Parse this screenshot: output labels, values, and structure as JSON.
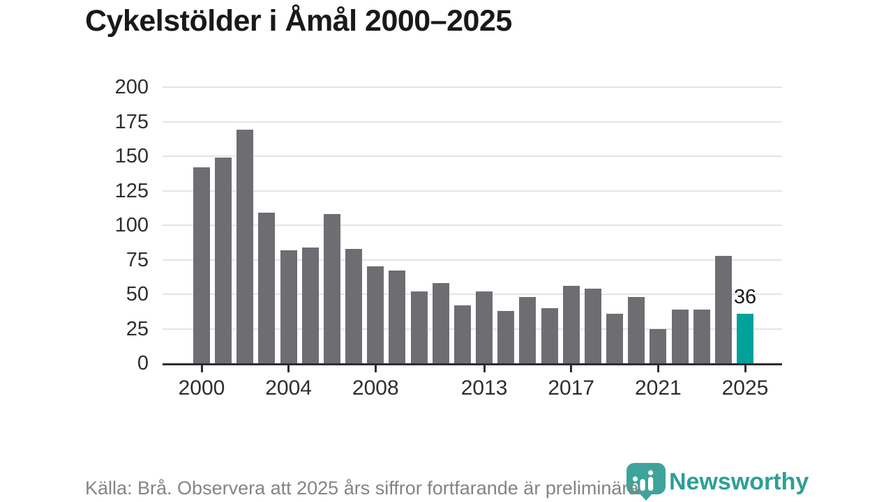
{
  "title": "Cykelstölder i Åmål 2000–2025",
  "chart_data": {
    "type": "bar",
    "title": "Cykelstölder i Åmål 2000–2025",
    "x": [
      2000,
      2001,
      2002,
      2003,
      2004,
      2005,
      2006,
      2007,
      2008,
      2009,
      2010,
      2011,
      2012,
      2013,
      2014,
      2015,
      2016,
      2017,
      2018,
      2019,
      2020,
      2021,
      2022,
      2023,
      2024,
      2025
    ],
    "values": [
      142,
      149,
      169,
      109,
      82,
      84,
      108,
      83,
      70,
      67,
      52,
      58,
      42,
      52,
      38,
      48,
      40,
      56,
      54,
      36,
      48,
      25,
      39,
      39,
      78,
      36
    ],
    "xlabel": "",
    "ylabel": "",
    "ylim": [
      0,
      200
    ],
    "yticks": [
      0,
      25,
      50,
      75,
      100,
      125,
      150,
      175,
      200
    ],
    "xticks": [
      2000,
      2004,
      2008,
      2013,
      2017,
      2021,
      2025
    ],
    "grid": true,
    "legend": "none",
    "bar_color": "#6e6e72",
    "highlight": {
      "year": 2025,
      "color": "#00a29b",
      "label": "36"
    }
  },
  "footer": {
    "source_note": "Källa: Brå. Observera att 2025 års siffror fortfarande är preliminära."
  },
  "branding": {
    "wordmark": "Newsworthy",
    "wordmark_color": "#2d9f96",
    "pin_icon": "newsworthy-pin-icon",
    "pin_color": "#3ea49b"
  },
  "colors": {
    "background": "#ffffff",
    "bar_default": "#6e6e72",
    "bar_highlight": "#00a29b",
    "gridline": "#e4e4e4",
    "axis": "#2d2d2d",
    "title_text": "#191919",
    "tick_text": "#2e2e2e",
    "footer_text": "#848484"
  }
}
